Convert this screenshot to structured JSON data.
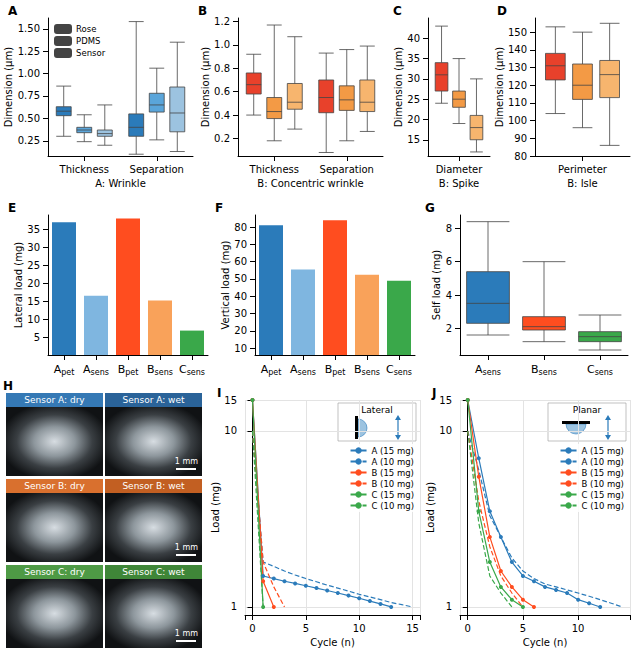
{
  "chart_data": [
    {
      "panel_label": "A",
      "type": "boxplot",
      "x_label": "A: Wrinkle",
      "y_label": "Dimension (μm)",
      "categories": [
        "Thickness",
        "Separation"
      ],
      "series": [
        {
          "name": "Rose",
          "color": "#2b7bba",
          "values": [
            [
              0.3,
              0.53,
              0.58,
              0.63,
              0.86
            ],
            [
              0.1,
              0.3,
              0.4,
              0.55,
              1.58
            ]
          ]
        },
        {
          "name": "PDMS",
          "color": "#5aa5da",
          "values": [
            [
              0.24,
              0.34,
              0.37,
              0.4,
              0.54
            ],
            [
              0.26,
              0.57,
              0.65,
              0.78,
              1.06
            ]
          ]
        },
        {
          "name": "Sensor",
          "color": "#9cc3e0",
          "values": [
            [
              0.2,
              0.3,
              0.33,
              0.37,
              0.65
            ],
            [
              0.13,
              0.35,
              0.56,
              0.85,
              1.35
            ]
          ]
        }
      ],
      "ylim": [
        0.08,
        1.62
      ],
      "yticks": [
        0.25,
        {
          "value": 0.5,
          "label": "0.50"
        },
        0.75,
        {
          "value": 1,
          "label": "1.00"
        },
        1.25,
        {
          "value": 1.5,
          "label": "1.50"
        }
      ],
      "legend": "upper left",
      "grid": false
    },
    {
      "panel_label": "B",
      "type": "boxplot",
      "x_label": "B: Concentric wrinkle",
      "y_label": "Dimension (μm)",
      "categories": [
        "Thickness",
        "Separation"
      ],
      "series": [
        {
          "color": "#e8412b",
          "values": [
            [
              0.4,
              0.58,
              0.66,
              0.76,
              0.92
            ],
            [
              0.08,
              0.42,
              0.55,
              0.7,
              0.93
            ]
          ]
        },
        {
          "color": "#f39a45",
          "values": [
            [
              0.18,
              0.37,
              0.43,
              0.55,
              1.17
            ],
            [
              0.18,
              0.44,
              0.53,
              0.65,
              0.96
            ]
          ]
        },
        {
          "color": "#f7b56e",
          "values": [
            [
              0.28,
              0.45,
              0.51,
              0.67,
              1.07
            ],
            [
              0.26,
              0.43,
              0.51,
              0.7,
              0.99
            ]
          ]
        }
      ],
      "ylim": [
        0.05,
        1.23
      ],
      "yticks": [
        0.2,
        0.4,
        0.6,
        0.8,
        {
          "value": 1,
          "label": "1.0"
        },
        1.2
      ],
      "grid": false
    },
    {
      "panel_label": "C",
      "type": "boxplot",
      "x_label": "B: Spike",
      "y_label": "Dimension (μm)",
      "categories": [
        "Diameter"
      ],
      "series": [
        {
          "color": "#e8412b",
          "values": [
            [
              24,
              27,
              31,
              34,
              43
            ]
          ]
        },
        {
          "color": "#f39a45",
          "values": [
            [
              19,
              23,
              25,
              27,
              35
            ]
          ]
        },
        {
          "color": "#f7b56e",
          "values": [
            [
              12,
              15,
              18,
              21,
              30
            ]
          ]
        }
      ],
      "ylim": [
        11,
        45
      ],
      "yticks": [
        15,
        20,
        25,
        30,
        35,
        40
      ],
      "grid": false
    },
    {
      "panel_label": "D",
      "type": "boxplot",
      "x_label": "B: Isle",
      "y_label": "Dimension (μm)",
      "categories": [
        "Perimeter"
      ],
      "series": [
        {
          "color": "#e8412b",
          "values": [
            [
              104,
              123,
              131,
              138,
              153
            ]
          ]
        },
        {
          "color": "#f39a45",
          "values": [
            [
              96,
              112,
              120,
              132,
              150
            ]
          ]
        },
        {
          "color": "#f7b56e",
          "values": [
            [
              86,
              113,
              126,
              134,
              155
            ]
          ]
        }
      ],
      "ylim": [
        80,
        158
      ],
      "yticks": [
        80,
        90,
        100,
        110,
        120,
        130,
        140,
        150
      ],
      "grid": false
    },
    {
      "panel_label": "E",
      "type": "bar",
      "y_label": "Lateral load (mg)",
      "categories": [
        "Apet",
        "Asens",
        "Bpet",
        "Bsens",
        "Csens"
      ],
      "values": [
        37,
        16.5,
        38,
        15.2,
        6.8
      ],
      "colors": [
        "#2b7bba",
        "#7fb6e0",
        "#ff4d1f",
        "#f9a25a",
        "#3aa84a"
      ],
      "ylim": [
        0,
        39
      ],
      "yticks": [
        5,
        10,
        15,
        20,
        25,
        30,
        35
      ],
      "grid": false
    },
    {
      "panel_label": "F",
      "type": "bar",
      "y_label": "Vertical load (mg)",
      "categories": [
        "Apet",
        "Asens",
        "Bpet",
        "Bsens",
        "Csens"
      ],
      "values": [
        81,
        55.5,
        84,
        52.5,
        49
      ],
      "colors": [
        "#2b7bba",
        "#7fb6e0",
        "#ff4d1f",
        "#f9a25a",
        "#3aa84a"
      ],
      "ylim": [
        6,
        87
      ],
      "yticks": [
        10,
        20,
        30,
        40,
        50,
        60,
        70,
        80
      ],
      "grid": false
    },
    {
      "panel_label": "G",
      "type": "boxplot",
      "y_label": "Self load (mg)",
      "categories": [
        "Asens",
        "Bsens",
        "Csens"
      ],
      "series": [
        {
          "colors": [
            "#2b7bba",
            "#ff4d1f",
            "#3aa84a"
          ],
          "values": [
            [
              1.6,
              2.3,
              3.5,
              5.4,
              8.4
            ],
            [
              1.2,
              1.9,
              2.1,
              2.7,
              6.0
            ],
            [
              0.7,
              1.2,
              1.5,
              1.8,
              2.8
            ]
          ]
        }
      ],
      "ylim": [
        0.4,
        8.8
      ],
      "yticks": [
        2,
        4,
        6,
        8
      ],
      "grid": false
    },
    {
      "panel_label": "I",
      "type": "line",
      "x_label": "Cycle (n)",
      "y_label": "Load (mg)",
      "inset_label": "Lateral",
      "log": "y",
      "grid": true,
      "legend": "upper right",
      "xlim": [
        -0.7,
        15.7
      ],
      "xticks": [
        0,
        5,
        10,
        15
      ],
      "ylim": [
        0.9,
        15
      ],
      "yticks": [
        1,
        10,
        15
      ],
      "series": [
        {
          "name": "A (15 mg)",
          "color": "#2b7bba",
          "line_style": "solid",
          "marker": "circle",
          "x": [
            0,
            1,
            2,
            3,
            4,
            5,
            6,
            7,
            8,
            9,
            10,
            11,
            12,
            13
          ],
          "values": [
            15,
            1.5,
            1.45,
            1.4,
            1.36,
            1.32,
            1.28,
            1.24,
            1.2,
            1.16,
            1.12,
            1.08,
            1.04,
            1.0
          ]
        },
        {
          "name": "A (10 mg)",
          "color": "#2b7bba",
          "line_style": "dashed",
          "marker": "none",
          "x": [
            0,
            1,
            2,
            3,
            4,
            5,
            6,
            7,
            8,
            9,
            10,
            11,
            12,
            13,
            14,
            15
          ],
          "values": [
            10,
            1.8,
            1.7,
            1.6,
            1.52,
            1.45,
            1.39,
            1.33,
            1.28,
            1.23,
            1.18,
            1.14,
            1.1,
            1.06,
            1.03,
            1.0
          ]
        },
        {
          "name": "B (15 mg)",
          "color": "#ff4d1f",
          "line_style": "solid",
          "marker": "circle",
          "x": [
            0,
            1,
            2
          ],
          "values": [
            15,
            1.4,
            1.0
          ]
        },
        {
          "name": "B (10 mg)",
          "color": "#ff4d1f",
          "line_style": "dashed",
          "marker": "none",
          "x": [
            0,
            1,
            2,
            3
          ],
          "values": [
            10,
            1.8,
            1.3,
            1.0
          ]
        },
        {
          "name": "C (15 mg)",
          "color": "#3aa84a",
          "line_style": "solid",
          "marker": "circle",
          "x": [
            0,
            1
          ],
          "values": [
            15,
            1.0
          ]
        },
        {
          "name": "C (10 mg)",
          "color": "#3aa84a",
          "line_style": "dashed",
          "marker": "none",
          "x": [
            0,
            1
          ],
          "values": [
            10,
            1.0
          ]
        }
      ]
    },
    {
      "panel_label": "J",
      "type": "line",
      "x_label": "Cycle (n)",
      "y_label": "Load (mg)",
      "inset_label": "Planar",
      "log": "y",
      "grid": true,
      "legend": "upper right",
      "xlim": [
        -0.7,
        14.7
      ],
      "xticks": [
        0,
        5,
        10
      ],
      "ylim": [
        0.9,
        15
      ],
      "yticks": [
        1,
        10,
        15
      ],
      "series": [
        {
          "name": "A (15 mg)",
          "color": "#2b7bba",
          "line_style": "solid",
          "marker": "circle",
          "x": [
            0,
            1,
            2,
            3,
            4,
            5,
            6,
            7,
            8,
            9,
            10,
            11,
            12
          ],
          "values": [
            15,
            7,
            3.5,
            2.5,
            1.8,
            1.5,
            1.4,
            1.3,
            1.25,
            1.2,
            1.1,
            1.05,
            1.0
          ]
        },
        {
          "name": "A (10 mg)",
          "color": "#2b7bba",
          "line_style": "dashed",
          "marker": "none",
          "x": [
            0,
            1,
            2,
            3,
            4,
            5,
            6,
            7,
            8,
            9,
            10,
            11,
            12,
            13,
            14
          ],
          "values": [
            10,
            6,
            3.3,
            2.5,
            1.9,
            1.6,
            1.45,
            1.35,
            1.3,
            1.25,
            1.2,
            1.15,
            1.1,
            1.05,
            1.0
          ]
        },
        {
          "name": "B (15 mg)",
          "color": "#ff4d1f",
          "line_style": "solid",
          "marker": "circle",
          "x": [
            0,
            1,
            2,
            3,
            4,
            5,
            6
          ],
          "values": [
            15,
            5.5,
            2.5,
            1.6,
            1.3,
            1.1,
            1.0
          ]
        },
        {
          "name": "B (10 mg)",
          "color": "#ff4d1f",
          "line_style": "dashed",
          "marker": "none",
          "x": [
            0,
            1,
            2,
            3,
            4,
            5
          ],
          "values": [
            10,
            4,
            2.2,
            1.5,
            1.2,
            1.0
          ]
        },
        {
          "name": "C (15 mg)",
          "color": "#3aa84a",
          "line_style": "solid",
          "marker": "circle",
          "x": [
            0,
            1,
            2,
            3,
            4,
            5
          ],
          "values": [
            15,
            3.5,
            1.8,
            1.3,
            1.1,
            1.0
          ]
        },
        {
          "name": "C (10 mg)",
          "color": "#3aa84a",
          "line_style": "dashed",
          "marker": "none",
          "x": [
            0,
            1,
            2,
            3,
            4
          ],
          "values": [
            10,
            3,
            1.5,
            1.2,
            1.0
          ]
        }
      ]
    }
  ],
  "photo_panel": {
    "panel_label": "H",
    "scale_bar": "1 mm",
    "photos": [
      {
        "label": "Sensor A: dry",
        "color": "#3579b5"
      },
      {
        "label": "Sensor A: wet",
        "color": "#2a6399"
      },
      {
        "label": "Sensor B: dry",
        "color": "#d9702e"
      },
      {
        "label": "Sensor B: wet",
        "color": "#c25f22"
      },
      {
        "label": "Sensor C: dry",
        "color": "#4e9a45"
      },
      {
        "label": "Sensor C: wet",
        "color": "#3f8638"
      }
    ]
  }
}
